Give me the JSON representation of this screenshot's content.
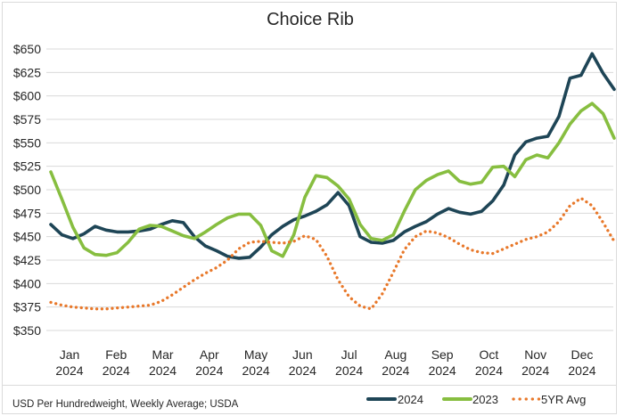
{
  "page": {
    "footer_note": "USD Per Hundredweight, Weekly Average; USDA"
  },
  "colors": {
    "series_2024": "#1E4556",
    "series_2023": "#87BE40",
    "series_5yr_avg": "#E8782A",
    "gridline": "#D9D9D9",
    "frame": "#DBDBDB",
    "text": "#262626"
  },
  "legend": {
    "items": [
      {
        "label": "2024",
        "style": "solid"
      },
      {
        "label": "2023",
        "style": "solid"
      },
      {
        "label": "5YR Avg",
        "style": "dotted"
      }
    ]
  },
  "chart_data": {
    "type": "line",
    "title": "Choice Rib",
    "xlabel": "",
    "ylabel": "USD per cwt",
    "x_unit": "weekly",
    "grid": true,
    "legend_position": "bottom-right",
    "x_tick_labels": [
      "Jan 2024",
      "Feb 2024",
      "Mar 2024",
      "Apr 2024",
      "May 2024",
      "Jun 2024",
      "Jul 2024",
      "Aug 2024",
      "Sep 2024",
      "Oct 2024",
      "Nov 2024",
      "Dec 2024"
    ],
    "y_axis": {
      "min": 350,
      "max": 650,
      "step": 25,
      "tick_prefix": "$"
    },
    "series": [
      {
        "name": "2024",
        "style": "solid",
        "color": "#1E4556",
        "values": [
          463,
          452,
          448,
          453,
          461,
          457,
          455,
          455,
          456,
          458,
          463,
          467,
          465,
          450,
          440,
          435,
          429,
          427,
          428,
          439,
          452,
          461,
          468,
          472,
          477,
          484,
          497,
          483,
          450,
          444,
          443,
          446,
          455,
          461,
          466,
          474,
          480,
          476,
          474,
          477,
          488,
          505,
          537,
          551,
          555,
          557,
          578,
          619,
          622,
          645,
          624,
          607
        ]
      },
      {
        "name": "2023",
        "style": "solid",
        "color": "#87BE40",
        "values": [
          519,
          490,
          460,
          438,
          431,
          430,
          433,
          444,
          458,
          462,
          461,
          456,
          451,
          448,
          455,
          463,
          470,
          474,
          474,
          462,
          435,
          429,
          452,
          492,
          515,
          513,
          504,
          490,
          463,
          448,
          446,
          452,
          477,
          500,
          510,
          516,
          520,
          509,
          506,
          508,
          524,
          525,
          514,
          532,
          537,
          534,
          550,
          570,
          584,
          592,
          581,
          555
        ]
      },
      {
        "name": "5YR Avg",
        "style": "dotted",
        "color": "#E8782A",
        "values": [
          380,
          377,
          375,
          374,
          373,
          373,
          374,
          375,
          376,
          377,
          381,
          388,
          396,
          404,
          411,
          417,
          425,
          437,
          444,
          445,
          444,
          443,
          445,
          451,
          447,
          429,
          404,
          386,
          376,
          373,
          389,
          412,
          436,
          450,
          456,
          454,
          449,
          442,
          436,
          433,
          432,
          437,
          442,
          447,
          450,
          455,
          466,
          483,
          491,
          483,
          465,
          445
        ]
      }
    ]
  }
}
